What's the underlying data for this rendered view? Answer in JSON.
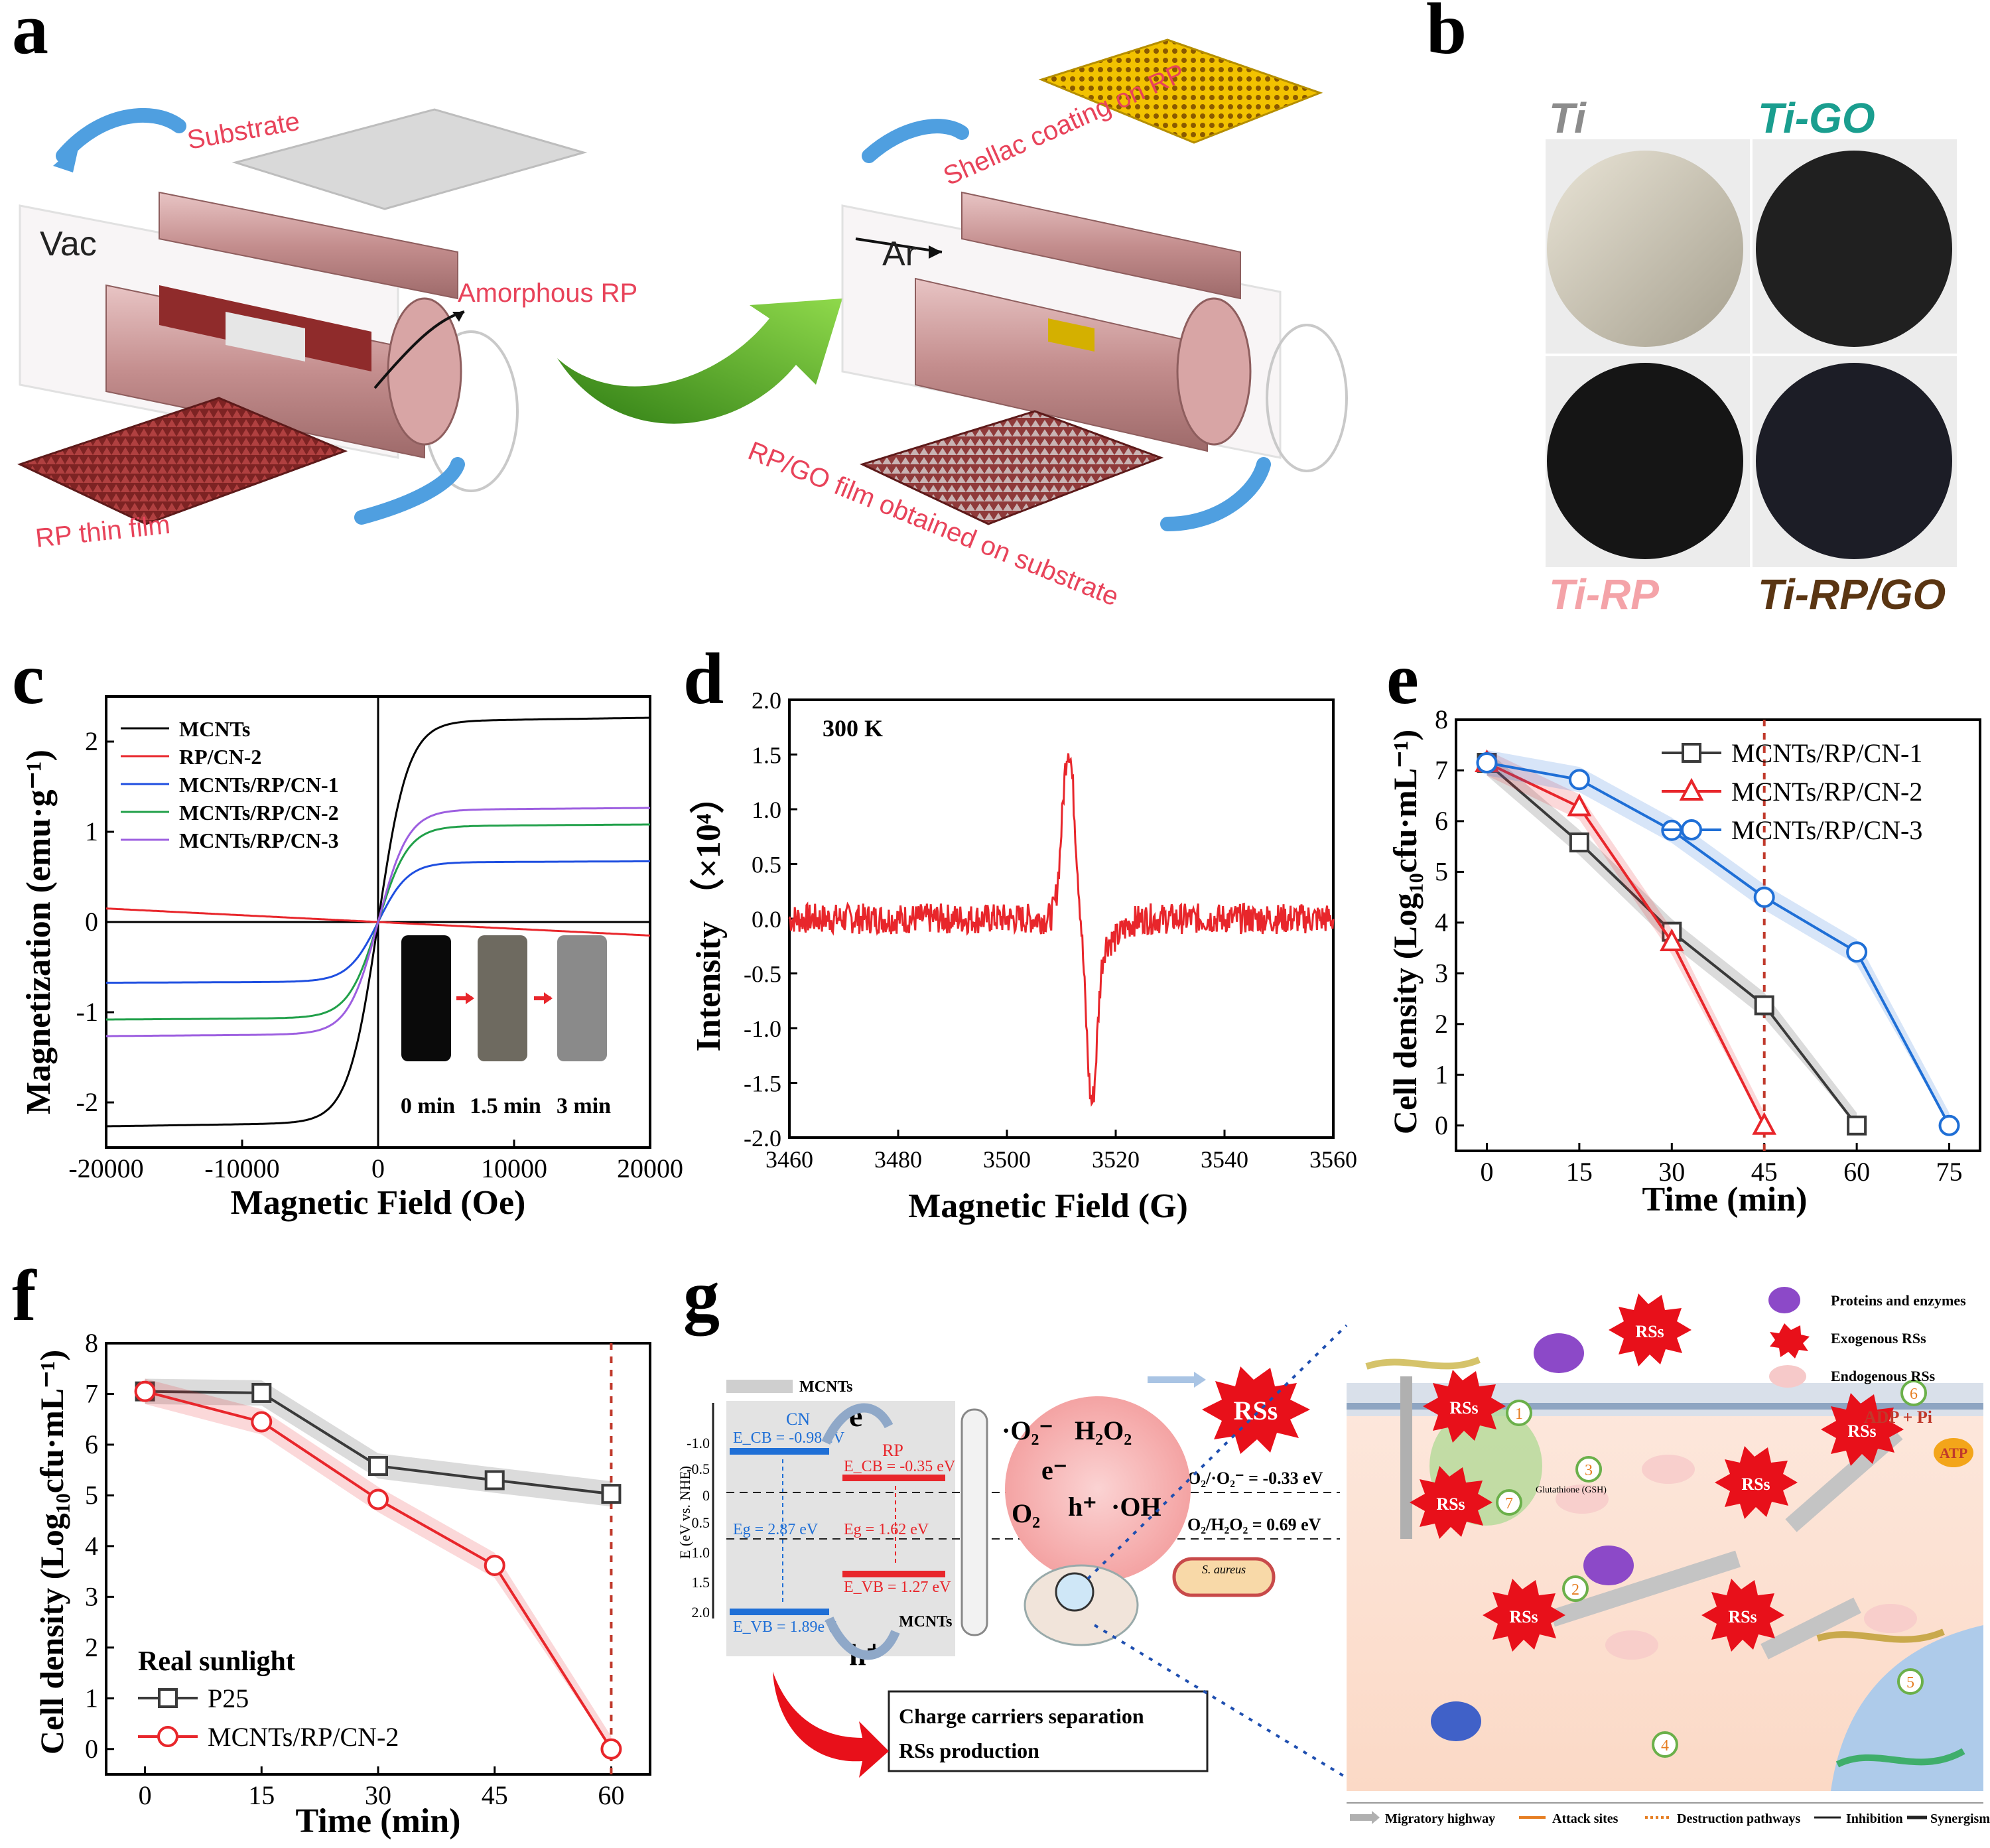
{
  "panel_letters": {
    "a": "a",
    "b": "b",
    "c": "c",
    "d": "d",
    "e": "e",
    "f": "f",
    "g": "g"
  },
  "panel_a": {
    "vac": "Vac",
    "ar": "Ar",
    "substrate": "Substrate",
    "amorphous_rp": "Amorphous RP",
    "rp_thin_film": "RP thin film",
    "shellac": "Shellac coating on RP",
    "rpgo_film": "RP/GO film obtained on substrate",
    "colors": {
      "label": "#e8435a",
      "film": "#8f2b2b",
      "coating": "#f2c200"
    }
  },
  "panel_b": {
    "ti": "Ti",
    "ti_go": "Ti-GO",
    "ti_rp": "Ti-RP",
    "ti_rpgo": "Ti-RP/GO",
    "colors": {
      "ti": "#8c8c8c",
      "ti_go": "#1a9e8f",
      "ti_rp": "#f4a3a8",
      "ti_rpgo": "#5a3512"
    }
  },
  "chart_data": [
    {
      "id": "c",
      "type": "line",
      "xlabel": "Magnetic Field (Oe)",
      "ylabel": "Magnetization (emu·g⁻¹)",
      "xlim": [
        -20000,
        20000
      ],
      "ylim": [
        -2.5,
        2.5
      ],
      "xticks": [
        -20000,
        -10000,
        0,
        10000,
        20000
      ],
      "xtick_labels": [
        "-20000",
        "-10000",
        "0",
        "10000",
        "20000"
      ],
      "yticks": [
        -2,
        -1,
        0,
        1,
        2
      ],
      "ytick_labels": [
        "-2",
        "-1",
        "0",
        "1",
        "2"
      ],
      "series": [
        {
          "name": "MCNTs",
          "color": "#000000",
          "ms": 2.22
        },
        {
          "name": "RP/CN-2",
          "color": "#e8262b",
          "ms": -0.15,
          "linear": true
        },
        {
          "name": "MCNTs/RP/CN-1",
          "color": "#1f4fe0",
          "ms": 0.66
        },
        {
          "name": "MCNTs/RP/CN-2",
          "color": "#21a04a",
          "ms": 1.06
        },
        {
          "name": "MCNTs/RP/CN-3",
          "color": "#9d5fe0",
          "ms": 1.24
        }
      ],
      "inset_labels": [
        "0 min",
        "1.5 min",
        "3 min"
      ]
    },
    {
      "id": "d",
      "type": "line",
      "xlabel": "Magnetic Field (G)",
      "ylabel": "Intensity （×10⁴）",
      "xlim": [
        3460,
        3560
      ],
      "ylim": [
        -2.0,
        2.0
      ],
      "xticks": [
        3460,
        3480,
        3500,
        3520,
        3540,
        3560
      ],
      "xtick_labels": [
        "3460",
        "3480",
        "3500",
        "3520",
        "3540",
        "3560"
      ],
      "yticks": [
        -2.0,
        -1.5,
        -1.0,
        -0.5,
        0.0,
        0.5,
        1.0,
        1.5,
        2.0
      ],
      "ytick_labels": [
        "-2.0",
        "-1.5",
        "-1.0",
        "-0.5",
        "0.0",
        "0.5",
        "1.0",
        "1.5",
        "2.0"
      ],
      "annotation": "300 K",
      "color": "#e8262b",
      "peak": {
        "x": 3511.3,
        "y": 1.56
      },
      "trough": {
        "x": 3515.6,
        "y": -1.62
      }
    },
    {
      "id": "e",
      "type": "line",
      "xlabel": "Time (min)",
      "ylabel": "Cell density (Log₁₀cfu·mL⁻¹)",
      "xlim": [
        -5,
        80
      ],
      "ylim": [
        -0.5,
        8
      ],
      "xticks": [
        0,
        15,
        30,
        45,
        60,
        75
      ],
      "xtick_labels": [
        "0",
        "15",
        "30",
        "45",
        "60",
        "75"
      ],
      "yticks": [
        0,
        1,
        2,
        3,
        4,
        5,
        6,
        7,
        8
      ],
      "ytick_labels": [
        "0",
        "1",
        "2",
        "3",
        "4",
        "5",
        "6",
        "7",
        "8"
      ],
      "vline": 45,
      "series": [
        {
          "name": "MCNTs/RP/CN-1",
          "color": "#3a3a3a",
          "marker": "square",
          "x": [
            0,
            15,
            30,
            45,
            60
          ],
          "y": [
            7.15,
            5.58,
            3.82,
            2.37,
            0.0
          ]
        },
        {
          "name": "MCNTs/RP/CN-2",
          "color": "#e8262b",
          "marker": "triangle",
          "x": [
            0,
            15,
            30,
            45
          ],
          "y": [
            7.15,
            6.28,
            3.62,
            0.0
          ]
        },
        {
          "name": "MCNTs/RP/CN-3",
          "color": "#1f6fd6",
          "marker": "circle",
          "x": [
            0,
            15,
            30,
            45,
            60,
            75
          ],
          "y": [
            7.15,
            6.82,
            5.82,
            4.5,
            3.42,
            0.0
          ]
        }
      ]
    },
    {
      "id": "f",
      "type": "line",
      "xlabel": "Time (min)",
      "ylabel": "Cell density (Log₁₀cfu·mL⁻¹)",
      "xlim": [
        -5,
        65
      ],
      "ylim": [
        -0.5,
        8
      ],
      "xticks": [
        0,
        15,
        30,
        45,
        60
      ],
      "xtick_labels": [
        "0",
        "15",
        "30",
        "45",
        "60"
      ],
      "yticks": [
        0,
        1,
        2,
        3,
        4,
        5,
        6,
        7,
        8
      ],
      "ytick_labels": [
        "0",
        "1",
        "2",
        "3",
        "4",
        "5",
        "6",
        "7",
        "8"
      ],
      "vline": 60,
      "legend_title": "Real sunlight",
      "series": [
        {
          "name": "P25",
          "color": "#3a3a3a",
          "marker": "square",
          "x": [
            0,
            15,
            30,
            45,
            60
          ],
          "y": [
            7.05,
            7.02,
            5.58,
            5.3,
            5.03
          ]
        },
        {
          "name": "MCNTs/RP/CN-2",
          "color": "#e8262b",
          "marker": "circle",
          "x": [
            0,
            15,
            30,
            45,
            60
          ],
          "y": [
            7.05,
            6.45,
            4.92,
            3.62,
            0.0
          ]
        }
      ]
    }
  ],
  "panel_g": {
    "mcnts_legend": "MCNTs",
    "axis_label": "E (eV vs. NHE)",
    "axis_ticks": [
      "-1.0",
      "-0.5",
      "0",
      "0.5",
      "1.0",
      "1.5",
      "2.0"
    ],
    "cn": "CN",
    "cn_ecb": "E_CB = -0.98 eV",
    "cn_eg": "Eg = 2.87 eV",
    "cn_evb": "E_VB = 1.89eV",
    "rp": "RP",
    "rp_ecb": "E_CB = -0.35 eV",
    "rp_eg": "Eg = 1.62 eV",
    "rp_evb": "E_VB = 1.27 eV",
    "e_minus": "e⁻",
    "h_plus": "h⁺",
    "mcnts_label": "MCNTs",
    "o2_radical": "·O₂⁻",
    "h2o2": "H₂O₂",
    "o2": "O₂",
    "oh": "·OH",
    "rss": "RSs",
    "pot1": "O₂/·O₂⁻ = -0.33 eV",
    "pot2": "O₂/H₂O₂ = 0.69 eV",
    "s_aureus": "S. aureus",
    "box1": "Charge carriers separation",
    "box2": "RSs production",
    "legend_proteins": "Proteins and enzymes",
    "legend_exo": "Exogenous RSs",
    "legend_endo": "Endogenous RSs",
    "atp": "ATP",
    "adp_pi": "ADP + Pi",
    "glutathione": "Glutathione (GSH)",
    "bottom_legend": [
      "Migratory highway",
      "Attack sites",
      "Destruction pathways",
      "Inhibition",
      "Synergism"
    ],
    "step_numbers": [
      "1",
      "2",
      "3",
      "4",
      "5",
      "6",
      "7"
    ]
  }
}
